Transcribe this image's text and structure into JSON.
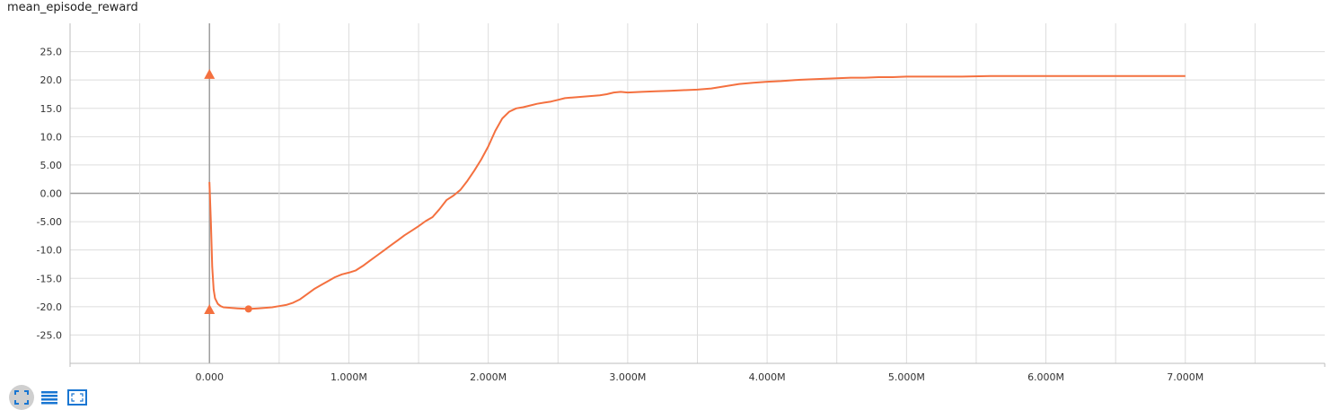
{
  "chart_data": {
    "type": "line",
    "title": "mean_episode_reward",
    "xlabel": "",
    "ylabel": "",
    "xlim": [
      -1000000,
      8000000
    ],
    "ylim": [
      -30,
      30
    ],
    "y_ticks": [
      25,
      20,
      15,
      10,
      5,
      0,
      -5,
      -10,
      -15,
      -20,
      -25
    ],
    "y_tick_labels": [
      "25.0",
      "20.0",
      "15.0",
      "10.0",
      "5.00",
      "0.00",
      "-5.00",
      "-10.0",
      "-15.0",
      "-20.0",
      "-25.0"
    ],
    "x_ticks": [
      0,
      1000000,
      2000000,
      3000000,
      4000000,
      5000000,
      6000000,
      7000000
    ],
    "x_tick_labels": [
      "0.000",
      "1.000M",
      "2.000M",
      "3.000M",
      "4.000M",
      "5.000M",
      "6.000M",
      "7.000M"
    ],
    "grid": true,
    "series": [
      {
        "color": "#f4703f",
        "x": [
          0,
          10000,
          20000,
          30000,
          40000,
          60000,
          80000,
          100000,
          150000,
          200000,
          280000,
          350000,
          400000,
          450000,
          500000,
          550000,
          600000,
          650000,
          700000,
          750000,
          800000,
          850000,
          900000,
          950000,
          1000000,
          1050000,
          1100000,
          1150000,
          1200000,
          1250000,
          1300000,
          1350000,
          1400000,
          1450000,
          1500000,
          1550000,
          1600000,
          1650000,
          1700000,
          1750000,
          1800000,
          1850000,
          1900000,
          1950000,
          2000000,
          2050000,
          2100000,
          2150000,
          2200000,
          2250000,
          2300000,
          2350000,
          2400000,
          2450000,
          2500000,
          2550000,
          2600000,
          2650000,
          2700000,
          2750000,
          2800000,
          2850000,
          2900000,
          2950000,
          3000000,
          3100000,
          3200000,
          3300000,
          3400000,
          3500000,
          3600000,
          3700000,
          3800000,
          3900000,
          4000000,
          4100000,
          4200000,
          4300000,
          4400000,
          4500000,
          4600000,
          4700000,
          4800000,
          4900000,
          5000000,
          5200000,
          5400000,
          5600000,
          5800000,
          6000000,
          6200000,
          6400000,
          6600000,
          6800000,
          7000000
        ],
        "y": [
          2.0,
          -5.0,
          -13.0,
          -17.0,
          -18.5,
          -19.5,
          -19.9,
          -20.1,
          -20.2,
          -20.3,
          -20.4,
          -20.3,
          -20.2,
          -20.1,
          -19.9,
          -19.7,
          -19.3,
          -18.7,
          -17.8,
          -16.9,
          -16.2,
          -15.5,
          -14.8,
          -14.3,
          -14.0,
          -13.6,
          -12.8,
          -11.9,
          -11.0,
          -10.1,
          -9.2,
          -8.3,
          -7.4,
          -6.6,
          -5.8,
          -4.9,
          -4.2,
          -2.8,
          -1.2,
          -0.4,
          0.6,
          2.2,
          4.0,
          6.0,
          8.3,
          11.0,
          13.2,
          14.4,
          15.0,
          15.2,
          15.5,
          15.8,
          16.0,
          16.2,
          16.5,
          16.8,
          16.9,
          17.0,
          17.1,
          17.2,
          17.3,
          17.5,
          17.8,
          17.9,
          17.8,
          17.9,
          18.0,
          18.1,
          18.2,
          18.3,
          18.5,
          18.9,
          19.3,
          19.5,
          19.7,
          19.8,
          20.0,
          20.1,
          20.2,
          20.3,
          20.4,
          20.4,
          20.5,
          20.5,
          20.6,
          20.6,
          20.6,
          20.7,
          20.7,
          20.7,
          20.7,
          20.7,
          20.7,
          20.7,
          20.7
        ]
      }
    ],
    "markers": [
      {
        "shape": "triangle",
        "x": 0,
        "y": 21.0
      },
      {
        "shape": "triangle",
        "x": 0,
        "y": -20.5
      },
      {
        "shape": "circle",
        "x": 280000,
        "y": -20.4
      }
    ]
  },
  "toolbar": {
    "buttons": [
      {
        "name": "fit-to-data-button",
        "icon": "fullscreen-icon"
      },
      {
        "name": "toggle-log-button",
        "icon": "lines-icon"
      },
      {
        "name": "zoom-button",
        "icon": "zoom-selection-icon"
      }
    ]
  }
}
